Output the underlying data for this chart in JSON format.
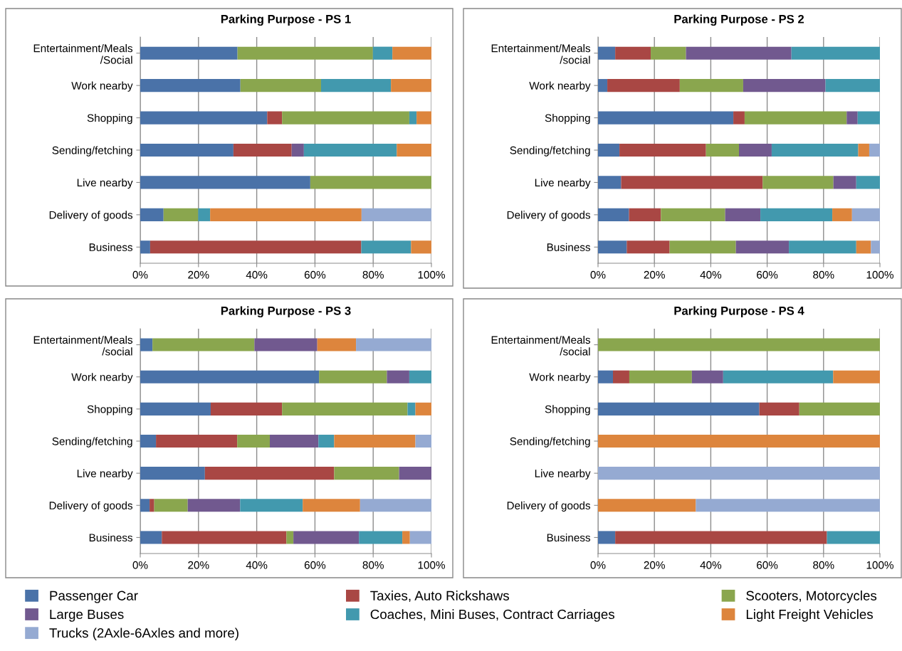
{
  "chart_data": [
    {
      "type": "bar",
      "orientation": "horizontal",
      "stacked": true,
      "title": "Parking Purpose - PS 1",
      "grid": "x",
      "legend": "bottom",
      "categories": [
        "Entertainment/Meals\n/Social",
        "Work nearby",
        "Shopping",
        "Sending/fetching",
        "Live nearby",
        "Delivery of goods",
        "Business"
      ],
      "xlim": [
        0,
        100
      ],
      "xticks": [
        {
          "value": 0,
          "label": "0%"
        },
        {
          "value": 20,
          "label": "20%"
        },
        {
          "value": 40,
          "label": "40%"
        },
        {
          "value": 60,
          "label": "60%"
        },
        {
          "value": 80,
          "label": "80%"
        },
        {
          "value": 100,
          "label": "100%"
        }
      ],
      "series": [
        {
          "name": "Passenger Car",
          "color": "#4a72a8",
          "values": [
            33.4,
            34.4,
            43.6,
            32.0,
            58.4,
            8.0,
            3.4
          ]
        },
        {
          "name": "Taxies, Auto Rickshaws",
          "color": "#a94744",
          "values": [
            null,
            null,
            5.1,
            20.0,
            null,
            null,
            72.5
          ]
        },
        {
          "name": "Scooters, Motorcycles",
          "color": "#8aa64e",
          "values": [
            46.5,
            27.7,
            43.7,
            null,
            41.6,
            11.9,
            null
          ]
        },
        {
          "name": "Large Buses",
          "color": "#71598f",
          "values": [
            null,
            null,
            null,
            4.2,
            null,
            null,
            null
          ]
        },
        {
          "name": "Coaches, Mini Buses, Contract Carriages",
          "color": "#4299ae",
          "values": [
            6.7,
            24.0,
            2.5,
            31.9,
            null,
            4.1,
            17.1
          ]
        },
        {
          "name": "Light Freight Vehicles",
          "color": "#dd853d",
          "values": [
            13.4,
            13.9,
            5.1,
            11.9,
            null,
            52.0,
            7.0
          ]
        },
        {
          "name": "Trucks (2Axle-6Axles and more)",
          "color": "#95aad2",
          "values": [
            null,
            null,
            null,
            null,
            null,
            24.0,
            null
          ]
        }
      ]
    },
    {
      "type": "bar",
      "orientation": "horizontal",
      "stacked": true,
      "title": "Parking Purpose - PS 2",
      "grid": "x",
      "categories": [
        "Entertainment/Meals\n/social",
        "Work nearby",
        "Shopping",
        "Sending/fetching",
        "Live nearby",
        "Delivery of goods",
        "Business"
      ],
      "xlim": [
        0,
        100
      ],
      "xticks": [
        {
          "value": 0,
          "label": "0%"
        },
        {
          "value": 20,
          "label": "20%"
        },
        {
          "value": 40,
          "label": "40%"
        },
        {
          "value": 60,
          "label": "60%"
        },
        {
          "value": 80,
          "label": "80%"
        },
        {
          "value": 100,
          "label": "100%"
        }
      ],
      "series": [
        {
          "color": "#4a72a8",
          "values": [
            6.1,
            3.3,
            48.0,
            7.6,
            8.2,
            11.0,
            10.2
          ]
        },
        {
          "color": "#a94744",
          "values": [
            12.6,
            25.7,
            4.0,
            30.7,
            50.2,
            11.3,
            15.2
          ]
        },
        {
          "color": "#8aa64e",
          "values": [
            12.5,
            22.5,
            36.2,
            11.7,
            25.1,
            22.8,
            23.5
          ]
        },
        {
          "color": "#71598f",
          "values": [
            37.4,
            29.2,
            3.9,
            11.6,
            8.1,
            12.5,
            18.8
          ]
        },
        {
          "color": "#4299ae",
          "values": [
            31.4,
            19.3,
            7.9,
            30.7,
            8.4,
            25.5,
            23.9
          ]
        },
        {
          "color": "#dd853d",
          "values": [
            null,
            null,
            null,
            3.9,
            null,
            7.0,
            5.2
          ]
        },
        {
          "color": "#95aad2",
          "values": [
            null,
            null,
            null,
            3.8,
            null,
            9.9,
            3.2
          ]
        }
      ]
    },
    {
      "type": "bar",
      "orientation": "horizontal",
      "stacked": true,
      "title": "Parking Purpose - PS 3",
      "grid": "x",
      "categories": [
        "Entertainment/Meals\n/social",
        "Work nearby",
        "Shopping",
        "Sending/fetching",
        "Live nearby",
        "Delivery of goods",
        "Business"
      ],
      "xlim": [
        0,
        100
      ],
      "xticks": [
        {
          "value": 0,
          "label": "0%"
        },
        {
          "value": 20,
          "label": "20%"
        },
        {
          "value": 40,
          "label": "40%"
        },
        {
          "value": 60,
          "label": "60%"
        },
        {
          "value": 80,
          "label": "80%"
        },
        {
          "value": 100,
          "label": "100%"
        }
      ],
      "series": [
        {
          "color": "#4a72a8",
          "values": [
            4.2,
            61.4,
            24.2,
            5.4,
            22.2,
            3.2,
            7.4
          ]
        },
        {
          "color": "#a94744",
          "values": [
            null,
            null,
            24.5,
            27.9,
            44.4,
            1.6,
            42.8
          ]
        },
        {
          "color": "#8aa64e",
          "values": [
            35.0,
            23.3,
            43.1,
            11.2,
            22.3,
            11.5,
            2.4
          ]
        },
        {
          "color": "#71598f",
          "values": [
            21.6,
            7.7,
            null,
            16.7,
            11.1,
            18.0,
            22.5
          ]
        },
        {
          "color": "#4299ae",
          "values": [
            null,
            7.6,
            2.7,
            5.4,
            null,
            21.5,
            14.9
          ]
        },
        {
          "color": "#dd853d",
          "values": [
            13.3,
            null,
            5.5,
            27.9,
            null,
            19.7,
            2.6
          ]
        },
        {
          "color": "#95aad2",
          "values": [
            25.9,
            null,
            null,
            5.5,
            null,
            24.5,
            7.4
          ]
        }
      ]
    },
    {
      "type": "bar",
      "orientation": "horizontal",
      "stacked": true,
      "title": "Parking Purpose - PS 4",
      "grid": "x",
      "categories": [
        "Entertainment/Meals\n/social",
        "Work nearby",
        "Shopping",
        "Sending/fetching",
        "Live nearby",
        "Delivery of goods",
        "Business"
      ],
      "xlim": [
        0,
        100
      ],
      "xticks": [
        {
          "value": 0,
          "label": "0%"
        },
        {
          "value": 20,
          "label": "20%"
        },
        {
          "value": 40,
          "label": "40%"
        },
        {
          "value": 60,
          "label": "60%"
        },
        {
          "value": 80,
          "label": "80%"
        },
        {
          "value": 100,
          "label": "100%"
        }
      ],
      "series": [
        {
          "color": "#4a72a8",
          "values": [
            null,
            5.3,
            57.2,
            null,
            null,
            null,
            6.1
          ]
        },
        {
          "color": "#a94744",
          "values": [
            null,
            5.8,
            14.2,
            null,
            null,
            null,
            75.1
          ]
        },
        {
          "color": "#8aa64e",
          "values": [
            100,
            22.2,
            28.6,
            null,
            null,
            null,
            null
          ]
        },
        {
          "color": "#71598f",
          "values": [
            null,
            11.1,
            null,
            null,
            null,
            null,
            null
          ]
        },
        {
          "color": "#4299ae",
          "values": [
            null,
            39.0,
            null,
            null,
            null,
            null,
            18.8
          ]
        },
        {
          "color": "#dd853d",
          "values": [
            null,
            16.6,
            null,
            100,
            null,
            34.7,
            null
          ]
        },
        {
          "color": "#95aad2",
          "values": [
            null,
            null,
            null,
            null,
            100,
            65.3,
            null
          ]
        }
      ]
    }
  ]
}
